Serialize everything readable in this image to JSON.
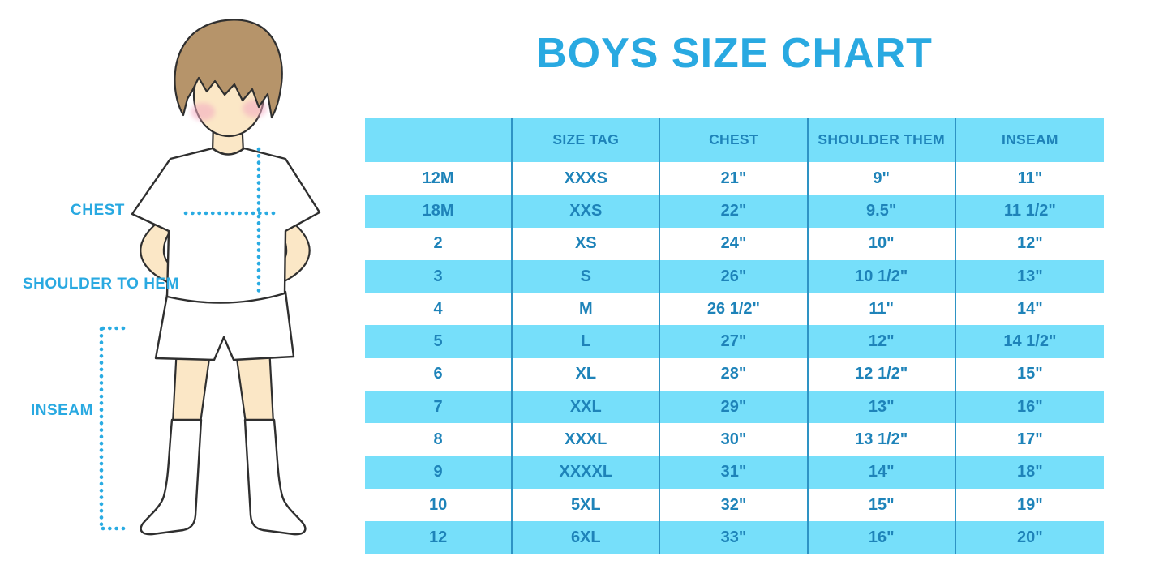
{
  "title": "BOYS SIZE CHART",
  "figure": {
    "labels": {
      "chest": "CHEST",
      "shoulder_to_hem": "SHOULDER TO HEM",
      "inseam": "INSEAM"
    }
  },
  "table": {
    "headers": [
      "",
      "SIZE TAG",
      "CHEST",
      "SHOULDER THEM",
      "INSEAM"
    ],
    "rows": [
      [
        "12M",
        "XXXS",
        "21\"",
        "9\"",
        "11\""
      ],
      [
        "18M",
        "XXS",
        "22\"",
        "9.5\"",
        "11 1/2\""
      ],
      [
        "2",
        "XS",
        "24\"",
        "10\"",
        "12\""
      ],
      [
        "3",
        "S",
        "26\"",
        "10 1/2\"",
        "13\""
      ],
      [
        "4",
        "M",
        "26 1/2\"",
        "11\"",
        "14\""
      ],
      [
        "5",
        "L",
        "27\"",
        "12\"",
        "14 1/2\""
      ],
      [
        "6",
        "XL",
        "28\"",
        "12 1/2\"",
        "15\""
      ],
      [
        "7",
        "XXL",
        "29\"",
        "13\"",
        "16\""
      ],
      [
        "8",
        "XXXL",
        "30\"",
        "13 1/2\"",
        "17\""
      ],
      [
        "9",
        "XXXXL",
        "31\"",
        "14\"",
        "18\""
      ],
      [
        "10",
        "5XL",
        "32\"",
        "15\"",
        "19\""
      ],
      [
        "12",
        "6XL",
        "33\"",
        "16\"",
        "20\""
      ]
    ]
  },
  "colors": {
    "accent_blue": "#29A9E1",
    "band_blue": "#76DFFA",
    "table_text_blue": "#1E83B9",
    "divider_blue": "#2E93C4",
    "dotted_line_blue": "#29ABE2",
    "hair_brown": "#B6946A",
    "skin_tone": "#FBE7C6",
    "blush_pink": "#F3A9C1"
  }
}
